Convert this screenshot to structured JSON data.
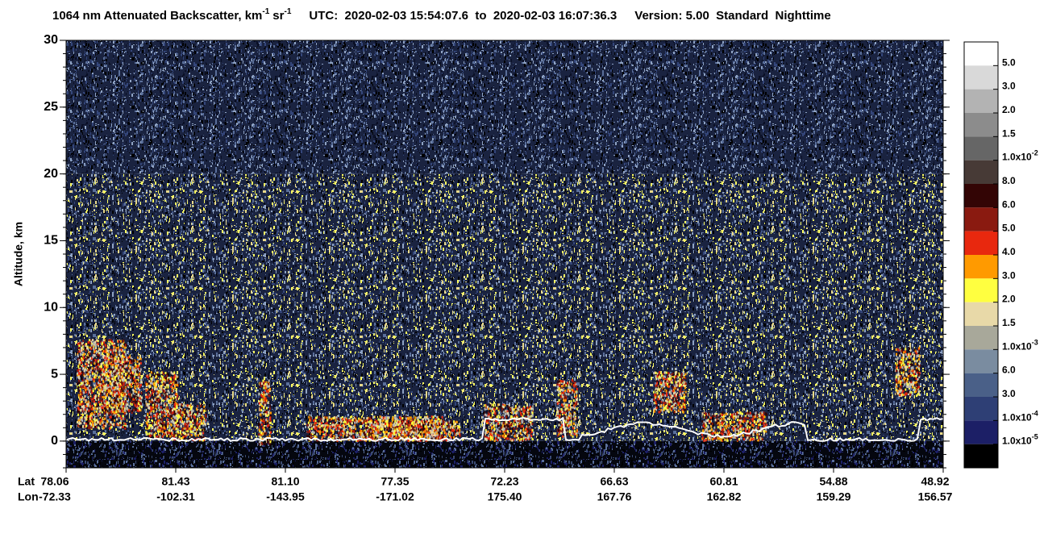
{
  "chart_data": {
    "type": "heatmap",
    "title": {
      "main": "1064 nm Attenuated Backscatter, km",
      "sup1": "-1",
      "mid": "sr",
      "sup2": "-1",
      "utc": "UTC:  2020-02-03 15:54:07.6  to  2020-02-03 16:07:36.3",
      "version": "Version: 5.00  Standard  Nighttime"
    },
    "y_label": "Altitude, km",
    "ylim": [
      -2,
      30
    ],
    "yticks": [
      0,
      5,
      10,
      15,
      20,
      25,
      30
    ],
    "x_row_labels": [
      "Lat",
      "Lon"
    ],
    "lat": [
      "78.06",
      "81.43",
      "81.10",
      "77.35",
      "72.23",
      "66.63",
      "60.81",
      "54.88",
      "48.92"
    ],
    "lon": [
      "-72.33",
      "-102.31",
      "-143.95",
      "-171.02",
      "175.40",
      "167.76",
      "162.82",
      "159.29",
      "156.57"
    ],
    "colorbar": {
      "colors": [
        "#ffffff",
        "#d9d9d9",
        "#b3b3b3",
        "#8c8c8c",
        "#666666",
        "#473a36",
        "#330505",
        "#8a1a10",
        "#e8280e",
        "#ff9a00",
        "#ffff40",
        "#e8d9a8",
        "#a8a89a",
        "#7a8ca0",
        "#4a6088",
        "#2e3f75",
        "#1c1f66",
        "#000000"
      ],
      "labels": [
        {
          "text": "5.0"
        },
        {
          "text": "3.0"
        },
        {
          "text": "2.0"
        },
        {
          "text": "1.5"
        },
        {
          "text": "1.0x10",
          "sup": "-2"
        },
        {
          "text": "8.0"
        },
        {
          "text": "6.0"
        },
        {
          "text": "5.0"
        },
        {
          "text": "4.0"
        },
        {
          "text": "3.0"
        },
        {
          "text": "2.0"
        },
        {
          "text": "1.5"
        },
        {
          "text": "1.0x10",
          "sup": "-3"
        },
        {
          "text": "6.0"
        },
        {
          "text": "3.0"
        },
        {
          "text": "1.0x10",
          "sup": "-4"
        },
        {
          "text": "1.0x10",
          "sup": "-5"
        }
      ]
    }
  }
}
